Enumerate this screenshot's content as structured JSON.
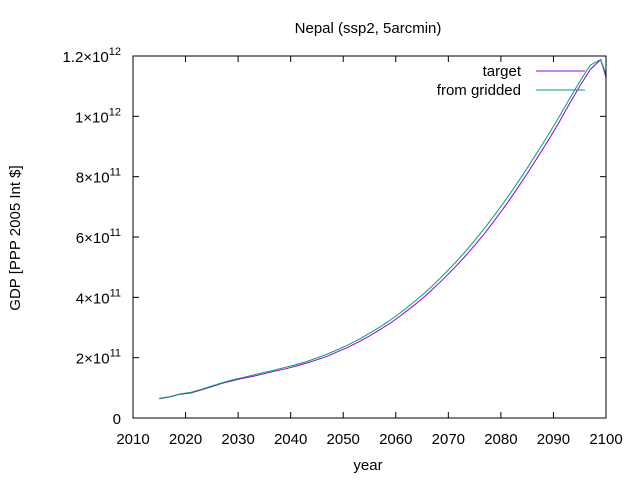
{
  "chart_data": {
    "type": "line",
    "title": "Nepal (ssp2, 5arcmin)",
    "xlabel": "year",
    "ylabel": "GDP [PPP 2005 Int $]",
    "xlim": [
      2010,
      2100
    ],
    "ylim": [
      0,
      1200000000000.0
    ],
    "grid": false,
    "legend_position": "top-right",
    "x_ticks": [
      {
        "value": 2010,
        "label": "2010"
      },
      {
        "value": 2020,
        "label": "2020"
      },
      {
        "value": 2030,
        "label": "2030"
      },
      {
        "value": 2040,
        "label": "2040"
      },
      {
        "value": 2050,
        "label": "2050"
      },
      {
        "value": 2060,
        "label": "2060"
      },
      {
        "value": 2070,
        "label": "2070"
      },
      {
        "value": 2080,
        "label": "2080"
      },
      {
        "value": 2090,
        "label": "2090"
      },
      {
        "value": 2100,
        "label": "2100"
      }
    ],
    "y_ticks": [
      {
        "value": 0,
        "mantissa": "0",
        "exponent": ""
      },
      {
        "value": 200000000000.0,
        "mantissa": "2×10",
        "exponent": "11"
      },
      {
        "value": 400000000000.0,
        "mantissa": "4×10",
        "exponent": "11"
      },
      {
        "value": 600000000000.0,
        "mantissa": "6×10",
        "exponent": "11"
      },
      {
        "value": 800000000000.0,
        "mantissa": "8×10",
        "exponent": "11"
      },
      {
        "value": 1000000000000.0,
        "mantissa": "1×10",
        "exponent": "12"
      },
      {
        "value": 1200000000000.0,
        "mantissa": "1.2×10",
        "exponent": "12"
      }
    ],
    "series": [
      {
        "name": "target",
        "color": "#9400d3",
        "x": [
          2015,
          2017,
          2019,
          2021,
          2023,
          2025,
          2027,
          2029,
          2031,
          2033,
          2035,
          2037,
          2039,
          2041,
          2043,
          2045,
          2047,
          2049,
          2051,
          2053,
          2055,
          2057,
          2059,
          2061,
          2063,
          2065,
          2067,
          2069,
          2071,
          2073,
          2075,
          2077,
          2079,
          2081,
          2083,
          2085,
          2087,
          2089,
          2091,
          2093,
          2095,
          2097,
          2099,
          2100
        ],
        "y": [
          64000000000.0,
          70000000000.0,
          79000000000.0,
          83000000000.0,
          93000000000.0,
          104000000000.0,
          115000000000.0,
          124000000000.0,
          132000000000.0,
          139000000000.0,
          147000000000.0,
          155000000000.0,
          163000000000.0,
          172000000000.0,
          182000000000.0,
          193000000000.0,
          205000000000.0,
          220000000000.0,
          235000000000.0,
          253000000000.0,
          272000000000.0,
          293000000000.0,
          315000000000.0,
          340000000000.0,
          367000000000.0,
          395000000000.0,
          427000000000.0,
          460000000000.0,
          495000000000.0,
          532000000000.0,
          572000000000.0,
          614000000000.0,
          660000000000.0,
          707000000000.0,
          758000000000.0,
          810000000000.0,
          865000000000.0,
          920000000000.0,
          978000000000.0,
          1040000000000.0,
          1100000000000.0,
          1155000000000.0,
          1200000000000.0,
          1130000000000.0
        ]
      },
      {
        "name": "from gridded",
        "color": "#009e73",
        "x": [
          2015,
          2017,
          2019,
          2021,
          2023,
          2025,
          2027,
          2029,
          2031,
          2033,
          2035,
          2037,
          2039,
          2041,
          2043,
          2045,
          2047,
          2049,
          2051,
          2053,
          2055,
          2057,
          2059,
          2061,
          2063,
          2065,
          2067,
          2069,
          2071,
          2073,
          2075,
          2077,
          2079,
          2081,
          2083,
          2085,
          2087,
          2089,
          2091,
          2093,
          2095,
          2097,
          2099,
          2100
        ],
        "y": [
          65000000000.0,
          71000000000.0,
          80000000000.0,
          85000000000.0,
          95000000000.0,
          106000000000.0,
          117000000000.0,
          127000000000.0,
          135000000000.0,
          143000000000.0,
          151000000000.0,
          159000000000.0,
          168000000000.0,
          177000000000.0,
          187000000000.0,
          199000000000.0,
          212000000000.0,
          227000000000.0,
          243000000000.0,
          261000000000.0,
          281000000000.0,
          302000000000.0,
          325000000000.0,
          350000000000.0,
          378000000000.0,
          407000000000.0,
          439000000000.0,
          473000000000.0,
          509000000000.0,
          547000000000.0,
          588000000000.0,
          631000000000.0,
          677000000000.0,
          725000000000.0,
          776000000000.0,
          828000000000.0,
          883000000000.0,
          938000000000.0,
          996000000000.0,
          1056000000000.0,
          1115000000000.0,
          1170000000000.0,
          1205000000000.0,
          1140000000000.0
        ]
      }
    ]
  }
}
